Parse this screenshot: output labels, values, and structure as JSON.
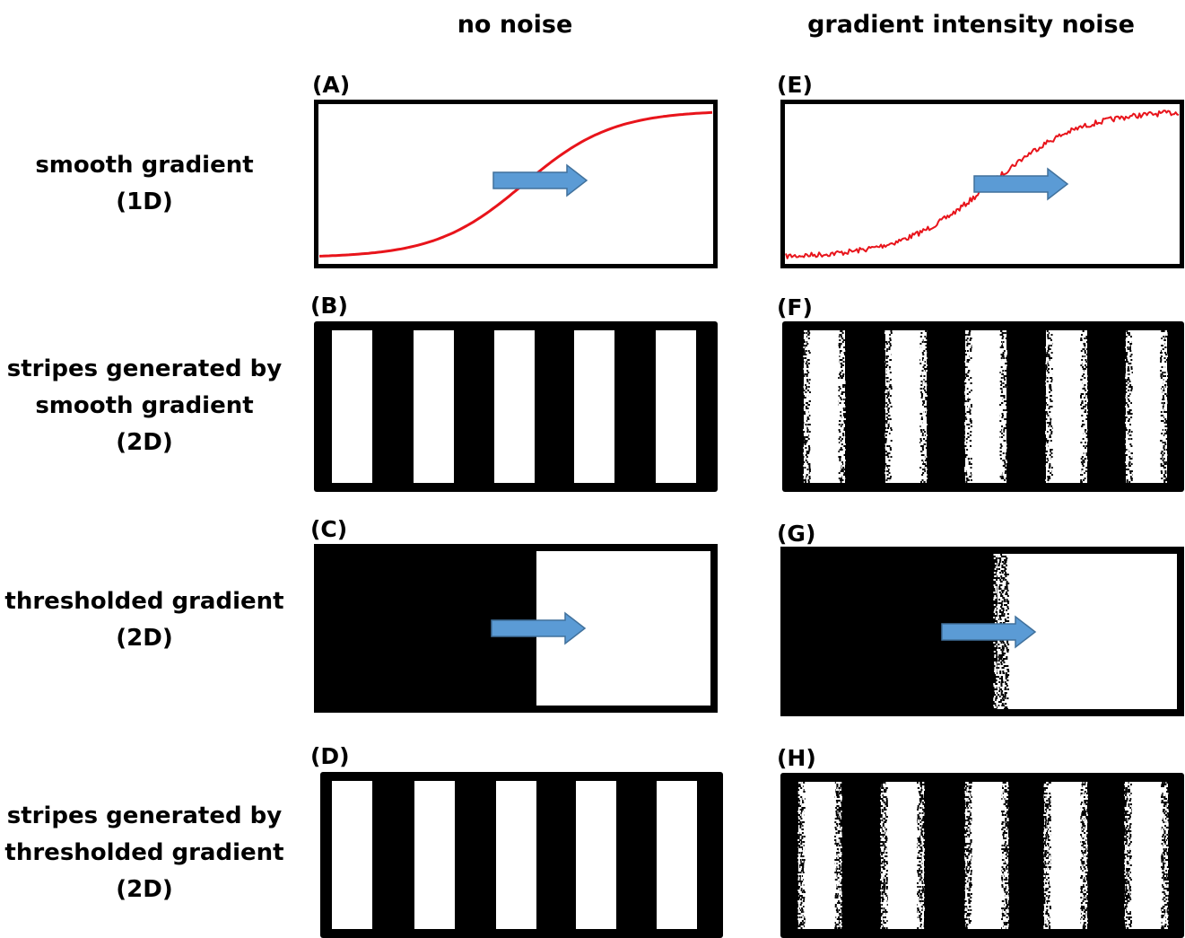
{
  "column_headers": {
    "left": "no noise",
    "right": "gradient intensity noise"
  },
  "row_labels": [
    {
      "lines": [
        "smooth gradient",
        "(1D)"
      ]
    },
    {
      "lines": [
        "stripes generated by",
        "smooth gradient",
        "(2D)"
      ]
    },
    {
      "lines": [
        "thresholded gradient",
        "(2D)"
      ]
    },
    {
      "lines": [
        "stripes generated by",
        "thresholded gradient",
        "(2D)"
      ]
    }
  ],
  "panels": {
    "A": {
      "label": "(A)",
      "content": "smooth sigmoid curve",
      "noise": false
    },
    "B": {
      "label": "(B)",
      "content": "5 white stripes",
      "noise": false
    },
    "C": {
      "label": "(C)",
      "content": "black / white threshold",
      "noise": false
    },
    "D": {
      "label": "(D)",
      "content": "5 white stripes",
      "noise": false
    },
    "E": {
      "label": "(E)",
      "content": "noisy sigmoid curve",
      "noise": true
    },
    "F": {
      "label": "(F)",
      "content": "5 white stripes",
      "noise": true
    },
    "G": {
      "label": "(G)",
      "content": "black / white threshold",
      "noise": true
    },
    "H": {
      "label": "(H)",
      "content": "5 white stripes",
      "noise": true
    }
  },
  "colors": {
    "curve": "#e8141b",
    "arrow_fill": "#5b9bd5",
    "arrow_stroke": "#41719c",
    "ink": "#000000",
    "paper": "#ffffff"
  },
  "icons": {
    "direction": "right-arrow-icon"
  }
}
